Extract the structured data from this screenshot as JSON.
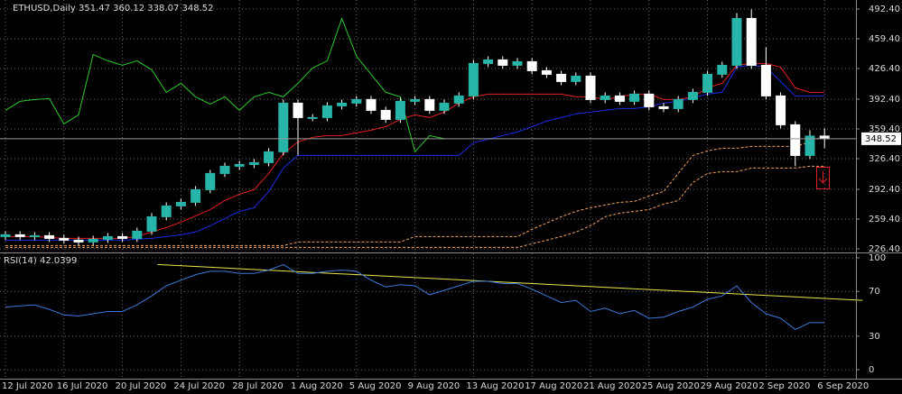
{
  "chart_data": [
    {
      "type": "candlestick",
      "title": "ETHUSD,Daily  351.47 360.12 338.07 348.52",
      "categories": [
        "12 Jul 2020",
        null,
        null,
        null,
        "16 Jul 2020",
        null,
        null,
        null,
        "20 Jul 2020",
        null,
        null,
        null,
        "24 Jul 2020",
        null,
        null,
        null,
        "28 Jul 2020",
        null,
        null,
        null,
        "1 Aug 2020",
        null,
        null,
        null,
        "5 Aug 2020",
        null,
        null,
        null,
        "9 Aug 2020",
        null,
        null,
        null,
        "13 Aug 2020",
        null,
        null,
        null,
        "17 Aug 2020",
        null,
        null,
        null,
        "21 Aug 2020",
        null,
        null,
        null,
        "25 Aug 2020",
        null,
        null,
        null,
        "29 Aug 2020",
        null,
        null,
        null,
        "2 Sep 2020",
        null,
        null,
        null,
        "6 Sep 2020"
      ],
      "open": [
        240,
        242,
        240,
        241,
        238,
        236,
        234,
        237,
        240,
        238,
        246,
        262,
        274,
        278,
        292,
        310,
        318,
        320,
        322,
        334,
        388,
        372,
        372,
        385,
        388,
        392,
        380,
        370,
        390,
        392,
        380,
        388,
        396,
        432,
        436,
        430,
        434,
        424,
        420,
        412,
        418,
        392,
        396,
        390,
        398,
        384,
        382,
        392,
        400,
        420,
        430,
        482,
        430,
        396,
        364,
        330,
        351.47
      ],
      "high": [
        246,
        246,
        245,
        245,
        242,
        240,
        241,
        244,
        244,
        250,
        266,
        278,
        282,
        296,
        314,
        322,
        324,
        326,
        338,
        392,
        392,
        376,
        389,
        392,
        396,
        396,
        384,
        394,
        396,
        396,
        392,
        400,
        436,
        440,
        440,
        438,
        438,
        428,
        424,
        422,
        422,
        400,
        400,
        402,
        402,
        388,
        396,
        404,
        424,
        434,
        488,
        492,
        450,
        400,
        368,
        358,
        360.12
      ],
      "low": [
        236,
        236,
        236,
        234,
        232,
        230,
        230,
        233,
        234,
        234,
        242,
        258,
        270,
        274,
        288,
        306,
        314,
        316,
        318,
        330,
        330,
        368,
        368,
        381,
        384,
        376,
        366,
        366,
        386,
        376,
        376,
        384,
        392,
        428,
        426,
        426,
        420,
        416,
        408,
        408,
        388,
        388,
        386,
        386,
        380,
        378,
        378,
        388,
        396,
        416,
        426,
        426,
        392,
        360,
        318,
        326,
        338.07
      ],
      "close": [
        242,
        240,
        241,
        238,
        236,
        234,
        237,
        240,
        238,
        246,
        262,
        274,
        278,
        292,
        310,
        318,
        320,
        322,
        334,
        388,
        372,
        372,
        385,
        388,
        392,
        380,
        370,
        390,
        392,
        380,
        388,
        396,
        432,
        436,
        430,
        434,
        424,
        420,
        412,
        418,
        392,
        396,
        390,
        398,
        384,
        382,
        392,
        400,
        420,
        430,
        482,
        430,
        396,
        364,
        330,
        351.47,
        348.52
      ],
      "bull_color": "#26b5a8",
      "bear_color": "#ffffff",
      "lines": [
        {
          "color": "#e02020",
          "dashed": false,
          "values": [
            240,
            240,
            240,
            239,
            238,
            238,
            238,
            238,
            238,
            240,
            245,
            250,
            256,
            263,
            270,
            280,
            287,
            292,
            310,
            332,
            345,
            350,
            352,
            352,
            355,
            358,
            362,
            370,
            375,
            372,
            378,
            388,
            395,
            398,
            398,
            398,
            398,
            398,
            398,
            395,
            395,
            392,
            395,
            398,
            398,
            392,
            392,
            395,
            405,
            410,
            430,
            432,
            432,
            428,
            405,
            400,
            400
          ]
        },
        {
          "color": "#1a2ee0",
          "dashed": false,
          "values": [
            236,
            236,
            236,
            236,
            236,
            236,
            236,
            236,
            236,
            237,
            238,
            240,
            242,
            245,
            252,
            260,
            268,
            272,
            290,
            316,
            330,
            330,
            330,
            330,
            330,
            330,
            330,
            330,
            330,
            330,
            330,
            330,
            344,
            348,
            352,
            356,
            362,
            368,
            372,
            376,
            378,
            380,
            382,
            382,
            384,
            388,
            390,
            394,
            398,
            400,
            428,
            430,
            428,
            412,
            396,
            396,
            396
          ]
        },
        {
          "color": "#2ec82e",
          "dashed": false,
          "values": [
            380,
            390,
            392,
            393,
            365,
            375,
            442,
            435,
            430,
            435,
            425,
            400,
            410,
            395,
            387,
            395,
            380,
            395,
            400,
            395,
            410,
            427,
            435,
            482,
            440,
            420,
            400,
            395,
            334,
            352,
            348.5,
            null,
            null,
            null,
            null,
            null,
            null,
            null,
            null,
            null,
            null,
            null,
            null,
            null,
            null,
            null,
            null,
            null,
            null,
            null,
            null,
            null,
            null,
            null,
            null,
            null,
            null
          ]
        },
        {
          "color": "#f4a460",
          "dashed": true,
          "values": [
            230,
            230,
            230,
            230,
            230,
            230,
            230,
            230,
            230,
            230,
            230,
            230,
            230,
            230,
            230,
            230,
            230,
            230,
            230,
            230,
            234,
            234,
            234,
            234,
            234,
            234,
            234,
            234,
            240,
            240,
            240,
            240,
            240,
            240,
            240,
            240,
            248,
            255,
            262,
            268,
            272,
            275,
            278,
            279,
            285,
            290,
            310,
            330,
            335,
            338,
            338,
            340,
            340,
            340,
            340,
            345,
            352
          ]
        },
        {
          "color": "#f4a460",
          "dashed": true,
          "values": [
            228,
            228,
            228,
            228,
            228,
            228,
            228,
            228,
            228,
            228,
            228,
            228,
            228,
            228,
            228,
            228,
            228,
            228,
            228,
            228,
            228,
            228,
            228,
            228,
            228,
            228,
            228,
            228,
            228,
            228,
            228,
            228,
            228,
            228,
            228,
            228,
            232,
            236,
            240,
            245,
            252,
            262,
            266,
            268,
            270,
            276,
            280,
            300,
            310,
            312,
            312,
            316,
            316,
            316,
            316,
            318,
            318
          ]
        }
      ],
      "last_price": 348.52,
      "ylim": [
        222.4,
        502.4
      ],
      "yticks": [
        {
          "value": 492.4,
          "label": "492.40"
        },
        {
          "value": 459.4,
          "label": "459.40"
        },
        {
          "value": 426.4,
          "label": "426.40"
        },
        {
          "value": 392.4,
          "label": "392.40"
        },
        {
          "value": 359.4,
          "label": "359.40"
        },
        {
          "value": 326.4,
          "label": "326.40"
        },
        {
          "value": 292.4,
          "label": "292.40"
        },
        {
          "value": 259.4,
          "label": "259.40"
        },
        {
          "value": 226.4,
          "label": "226.40"
        }
      ],
      "grid": true
    },
    {
      "type": "line",
      "title": "RSI(14) 42.0399",
      "color": "#3f78d8",
      "values": [
        56,
        57,
        58,
        54,
        49,
        48,
        50,
        52,
        52,
        58,
        66,
        75,
        80,
        85,
        88,
        88,
        86,
        86,
        89,
        94,
        86,
        86,
        88,
        89,
        88,
        80,
        74,
        76,
        75,
        67,
        71,
        75,
        79,
        79,
        77,
        77,
        72,
        66,
        60,
        62,
        52,
        55,
        50,
        53,
        46,
        47,
        52,
        56,
        63,
        66,
        75,
        60,
        50,
        46,
        36,
        42,
        42.0399
      ],
      "trendline": {
        "x": [
          10.4,
          58.6
        ],
        "values": [
          94,
          62
        ],
        "color": "#e6e64a"
      },
      "ylim": [
        -8,
        104
      ],
      "yticks": [
        100,
        70,
        30,
        0
      ],
      "grid": true
    }
  ]
}
